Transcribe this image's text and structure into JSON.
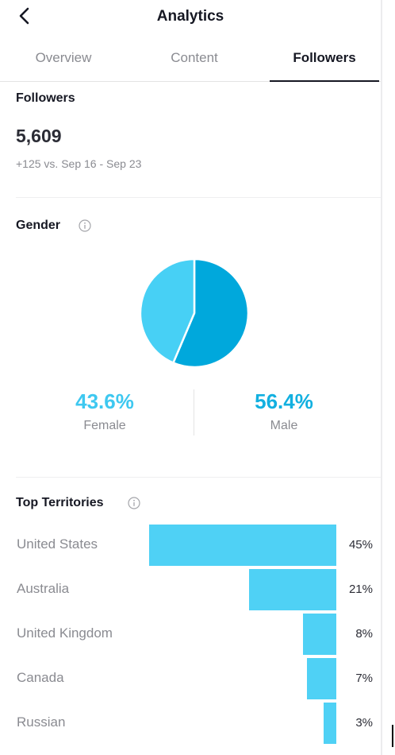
{
  "header": {
    "title": "Analytics"
  },
  "tabs": [
    {
      "label": "Overview",
      "active": false
    },
    {
      "label": "Content",
      "active": false
    },
    {
      "label": "Followers",
      "active": true
    }
  ],
  "followers": {
    "title": "Followers",
    "count": "5,609",
    "delta": "+125 vs. Sep 16 - Sep 23"
  },
  "gender": {
    "title": "Gender",
    "female": {
      "pct": "43.6%",
      "label": "Female",
      "value": 43.6
    },
    "male": {
      "pct": "56.4%",
      "label": "Male",
      "value": 56.4
    },
    "colors": {
      "female": "#47d0f5",
      "male": "#00a8dc",
      "female_text": "#3ec8f0",
      "male_text": "#12b0e0"
    }
  },
  "territories": {
    "title": "Top Territories",
    "bar_color": "#4fd1f5",
    "items": [
      {
        "name": "United States",
        "pct": "45%",
        "value": 45
      },
      {
        "name": "Australia",
        "pct": "21%",
        "value": 21
      },
      {
        "name": "United Kingdom",
        "pct": "8%",
        "value": 8
      },
      {
        "name": "Canada",
        "pct": "7%",
        "value": 7
      },
      {
        "name": "Russian",
        "pct": "3%",
        "value": 3
      }
    ]
  }
}
